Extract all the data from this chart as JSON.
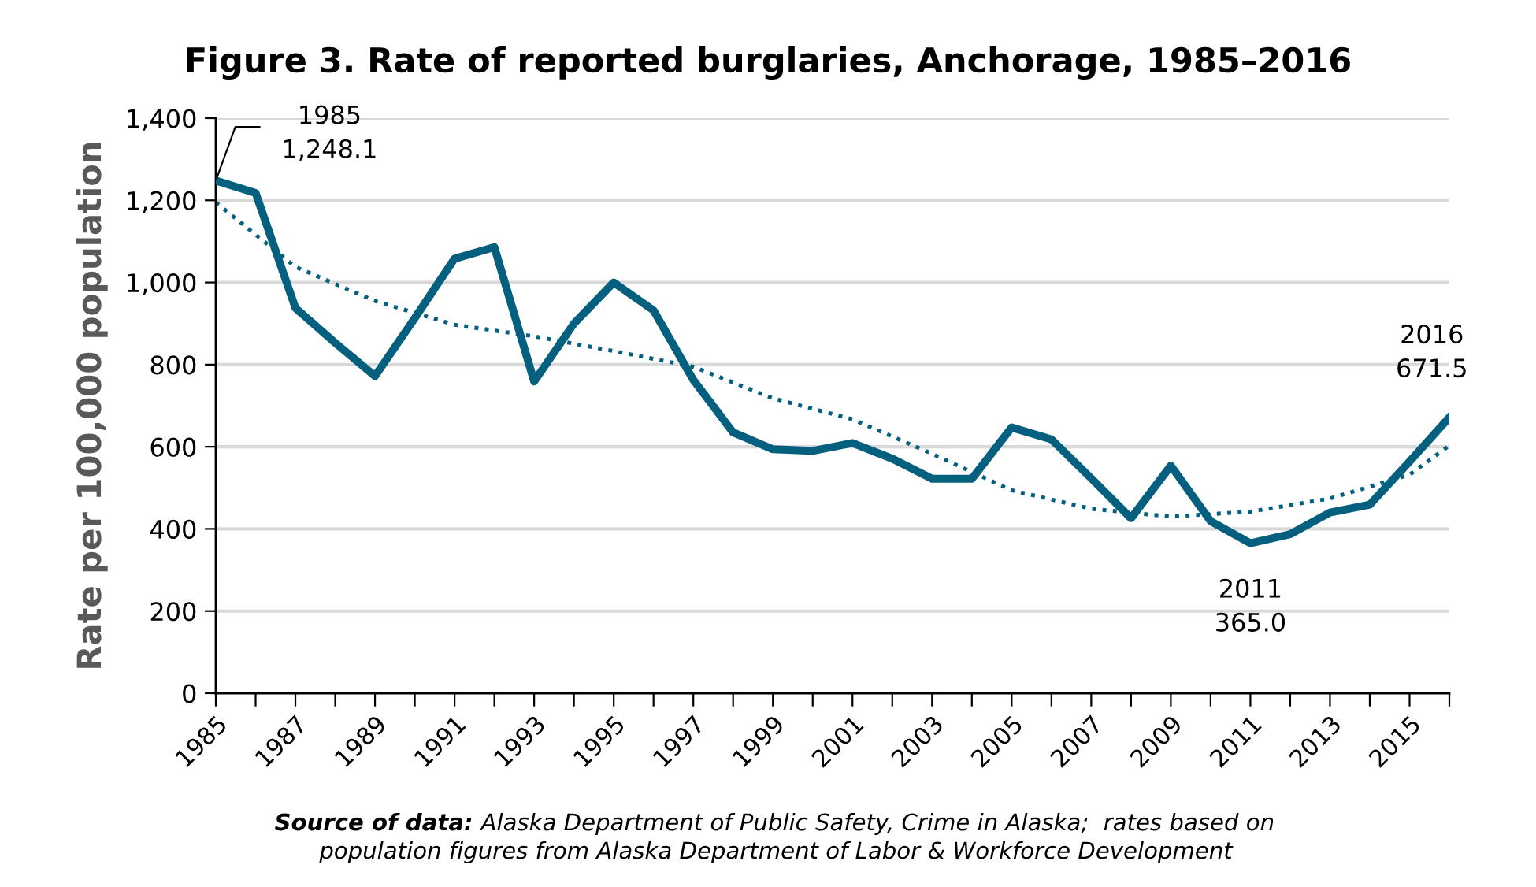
{
  "chart_data": {
    "type": "line",
    "title": "Figure 3. Rate of reported burglaries, Anchorage, 1985–2016",
    "ylabel": "Rate per 100,000 population",
    "x": [
      1985,
      1986,
      1987,
      1988,
      1989,
      1990,
      1991,
      1992,
      1993,
      1994,
      1995,
      1996,
      1997,
      1998,
      1999,
      2000,
      2001,
      2002,
      2003,
      2004,
      2005,
      2006,
      2007,
      2008,
      2009,
      2010,
      2011,
      2012,
      2013,
      2014,
      2015,
      2016
    ],
    "series": [
      {
        "color": "#05607f",
        "line_style": "solid",
        "values": [
          1248.1,
          1218,
          938,
          853,
          772,
          913,
          1058,
          1086,
          759,
          900,
          1000,
          932,
          763,
          635,
          594,
          590,
          609,
          571,
          522,
          522,
          647,
          618,
          523,
          426,
          554,
          419,
          365.0,
          387,
          440,
          459,
          564,
          671.5
        ]
      },
      {
        "color": "#05607f",
        "line_style": "dotted",
        "x": [
          1985,
          1987,
          1989,
          1991,
          1993,
          1995,
          1997,
          1999,
          2001,
          2003,
          2005,
          2007,
          2009,
          2011,
          2013,
          2015,
          2016
        ],
        "values": [
          1195,
          1038,
          955,
          897,
          869,
          833,
          795,
          718,
          667,
          583,
          494,
          449,
          430,
          442,
          474,
          532,
          603
        ]
      }
    ],
    "xlim": [
      1985,
      2016
    ],
    "xticks": [
      1985,
      {
        "value": 1986,
        "label": null
      },
      1987,
      {
        "value": 1988,
        "label": null
      },
      1989,
      {
        "value": 1990,
        "label": null
      },
      1991,
      {
        "value": 1992,
        "label": null
      },
      1993,
      {
        "value": 1994,
        "label": null
      },
      1995,
      {
        "value": 1996,
        "label": null
      },
      1997,
      {
        "value": 1998,
        "label": null
      },
      1999,
      {
        "value": 2000,
        "label": null
      },
      2001,
      {
        "value": 2002,
        "label": null
      },
      2003,
      {
        "value": 2004,
        "label": null
      },
      2005,
      {
        "value": 2006,
        "label": null
      },
      2007,
      {
        "value": 2008,
        "label": null
      },
      2009,
      {
        "value": 2010,
        "label": null
      },
      2011,
      {
        "value": 2012,
        "label": null
      },
      2013,
      {
        "value": 2014,
        "label": null
      },
      2015,
      {
        "value": 2016,
        "label": null
      }
    ],
    "ylim": [
      0,
      1400
    ],
    "yticks": [
      0,
      200,
      400,
      600,
      800,
      {
        "value": 1000,
        "label": "1,000"
      },
      {
        "value": 1200,
        "label": "1,200"
      },
      {
        "value": 1400,
        "label": "1,400"
      }
    ],
    "grid": "y",
    "legend": false,
    "marker": "none",
    "annotations": [
      {
        "text": "1985\n1,248.1",
        "x": 1985,
        "y": 1248.1
      },
      {
        "text": "2011\n365.0",
        "x": 2011,
        "y": 365.0
      },
      {
        "text": "2016\n671.5",
        "x": 2016,
        "y": 671.5
      },
      "Source of data:",
      "Alaska Department of Public Safety, Crime in Alaska;  rates based on",
      "population figures from Alaska Department of Labor & Workforce Development"
    ]
  }
}
